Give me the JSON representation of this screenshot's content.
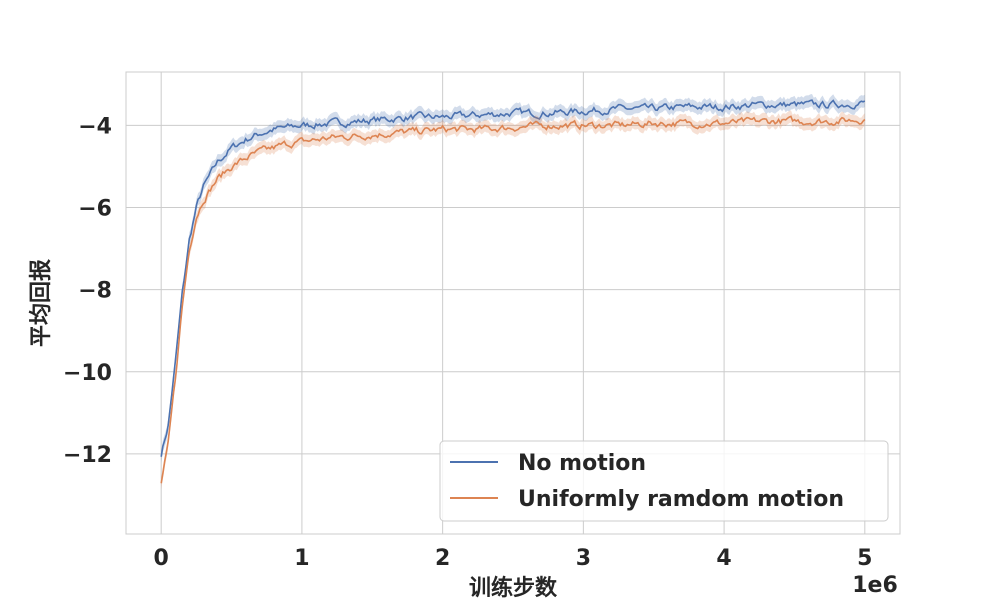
{
  "chart_data": {
    "type": "line",
    "title": "",
    "xlabel": "训练步数",
    "ylabel": "平均回报",
    "x_offset_label": "1e6",
    "xlim": [
      -0.25,
      5.25
    ],
    "ylim": [
      -13.95,
      -2.7
    ],
    "x_ticks": [
      0,
      1,
      2,
      3,
      4,
      5
    ],
    "x_tick_labels": [
      "0",
      "1",
      "2",
      "3",
      "4",
      "5"
    ],
    "y_ticks": [
      -12,
      -10,
      -8,
      -6,
      -4
    ],
    "y_tick_labels": [
      "−12",
      "−10",
      "−8",
      "−6",
      "−4"
    ],
    "grid": true,
    "legend_position": "lower-right",
    "series": [
      {
        "name": "No motion",
        "color": "#4c72b0",
        "x": [
          0,
          0.05,
          0.1,
          0.15,
          0.2,
          0.25,
          0.3,
          0.4,
          0.5,
          0.6,
          0.7,
          0.8,
          0.9,
          1.0,
          1.2,
          1.4,
          1.6,
          1.8,
          2.0,
          2.25,
          2.5,
          2.75,
          3.0,
          3.25,
          3.5,
          3.75,
          4.0,
          4.25,
          4.5,
          4.75,
          5.0
        ],
        "y": [
          -12.0,
          -11.3,
          -9.8,
          -8.1,
          -6.8,
          -6.0,
          -5.5,
          -4.9,
          -4.55,
          -4.35,
          -4.2,
          -4.1,
          -4.05,
          -4.0,
          -3.95,
          -3.9,
          -3.85,
          -3.8,
          -3.8,
          -3.75,
          -3.7,
          -3.7,
          -3.65,
          -3.6,
          -3.6,
          -3.55,
          -3.55,
          -3.5,
          -3.5,
          -3.5,
          -3.45
        ],
        "band": 0.15
      },
      {
        "name": "Uniformly ramdom motion",
        "color": "#dd8452",
        "x": [
          0,
          0.05,
          0.1,
          0.15,
          0.2,
          0.25,
          0.3,
          0.4,
          0.5,
          0.6,
          0.7,
          0.8,
          0.9,
          1.0,
          1.2,
          1.4,
          1.6,
          1.8,
          2.0,
          2.25,
          2.5,
          2.75,
          3.0,
          3.25,
          3.5,
          3.75,
          4.0,
          4.25,
          4.5,
          4.75,
          5.0
        ],
        "y": [
          -12.7,
          -11.8,
          -10.2,
          -8.4,
          -7.0,
          -6.2,
          -5.8,
          -5.3,
          -5.0,
          -4.8,
          -4.65,
          -4.55,
          -4.45,
          -4.4,
          -4.3,
          -4.25,
          -4.2,
          -4.15,
          -4.1,
          -4.1,
          -4.05,
          -4.0,
          -4.0,
          -4.0,
          -3.95,
          -3.95,
          -3.95,
          -3.9,
          -3.9,
          -3.9,
          -3.85
        ],
        "band": 0.15
      }
    ]
  }
}
